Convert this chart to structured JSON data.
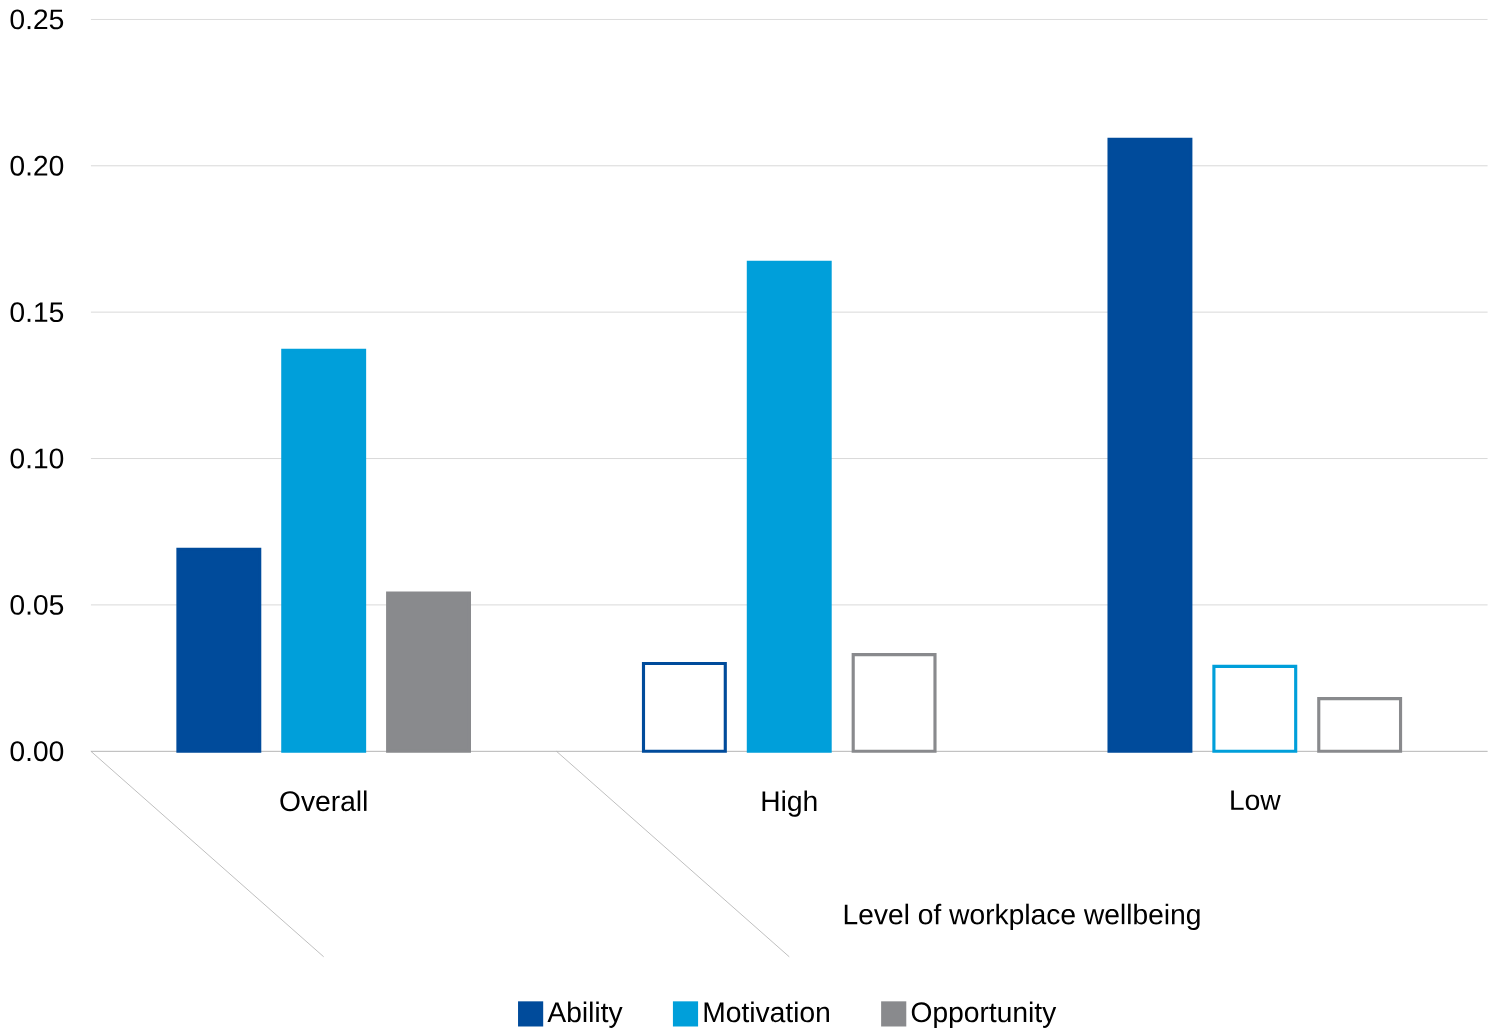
{
  "chart_data": {
    "type": "bar",
    "xlabel": "Level of workplace wellbeing",
    "categories": [
      "Overall",
      "High",
      "Low"
    ],
    "series": [
      {
        "name": "Ability",
        "color": "#004b9b",
        "values": [
          0.069,
          0.03,
          0.209
        ],
        "colors": [
          "#004b9b",
          "#ffffff",
          "#004b9b"
        ]
      },
      {
        "name": "Motivation",
        "color": "#009fda",
        "values": [
          0.137,
          0.167,
          0.029
        ],
        "colors": [
          "#009fda",
          "#009fda",
          "#ffffff"
        ]
      },
      {
        "name": "Opportunity",
        "color": "#898a8d",
        "values": [
          0.054,
          0.033,
          0.018
        ],
        "colors": [
          "#898a8d",
          "#ffffff",
          "#ffffff"
        ]
      }
    ],
    "ylim": [
      0,
      0.25
    ],
    "yticks": [
      {
        "value": 0,
        "label": "0.00"
      },
      {
        "value": 0.05,
        "label": "0.05"
      },
      {
        "value": 0.1,
        "label": "0.10"
      },
      {
        "value": 0.15,
        "label": "0.15"
      },
      {
        "value": 0.2,
        "label": "0.20"
      },
      {
        "value": 0.25,
        "label": "0.25"
      }
    ],
    "grid": "y",
    "legend": "bottom"
  }
}
